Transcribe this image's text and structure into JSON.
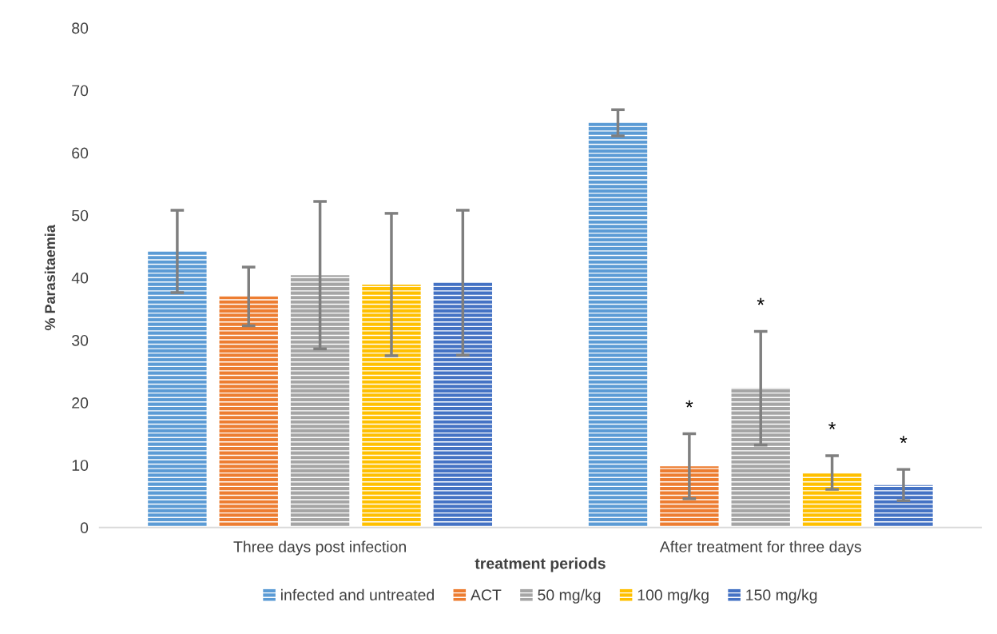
{
  "chart_data": {
    "type": "bar",
    "xlabel": "treatment periods",
    "ylabel": "% Parasitaemia",
    "categories": [
      "Three days post infection",
      "After treatment for three days"
    ],
    "series": [
      {
        "name": "infected and untreated",
        "color": "#5b9bd5",
        "values": [
          44.2,
          64.8
        ],
        "errors": [
          6.6,
          2.1
        ]
      },
      {
        "name": "ACT",
        "color": "#ed7d31",
        "values": [
          37.0,
          9.8
        ],
        "errors": [
          4.7,
          5.2
        ]
      },
      {
        "name": "50 mg/kg",
        "color": "#a5a5a5",
        "values": [
          40.4,
          22.3
        ],
        "errors": [
          11.8,
          9.1
        ]
      },
      {
        "name": "100 mg/kg",
        "color": "#ffc000",
        "values": [
          38.9,
          8.8
        ],
        "errors": [
          11.4,
          2.7
        ]
      },
      {
        "name": "150 mg/kg",
        "color": "#4472c4",
        "values": [
          39.2,
          6.8
        ],
        "errors": [
          11.6,
          2.5
        ]
      }
    ],
    "annotations": [
      "*",
      "*",
      "*",
      "*"
    ],
    "ylim": [
      0,
      80
    ],
    "yticks": [
      0,
      10,
      20,
      30,
      40,
      50,
      60,
      70,
      80
    ],
    "grid": false,
    "legend": "bottom"
  }
}
